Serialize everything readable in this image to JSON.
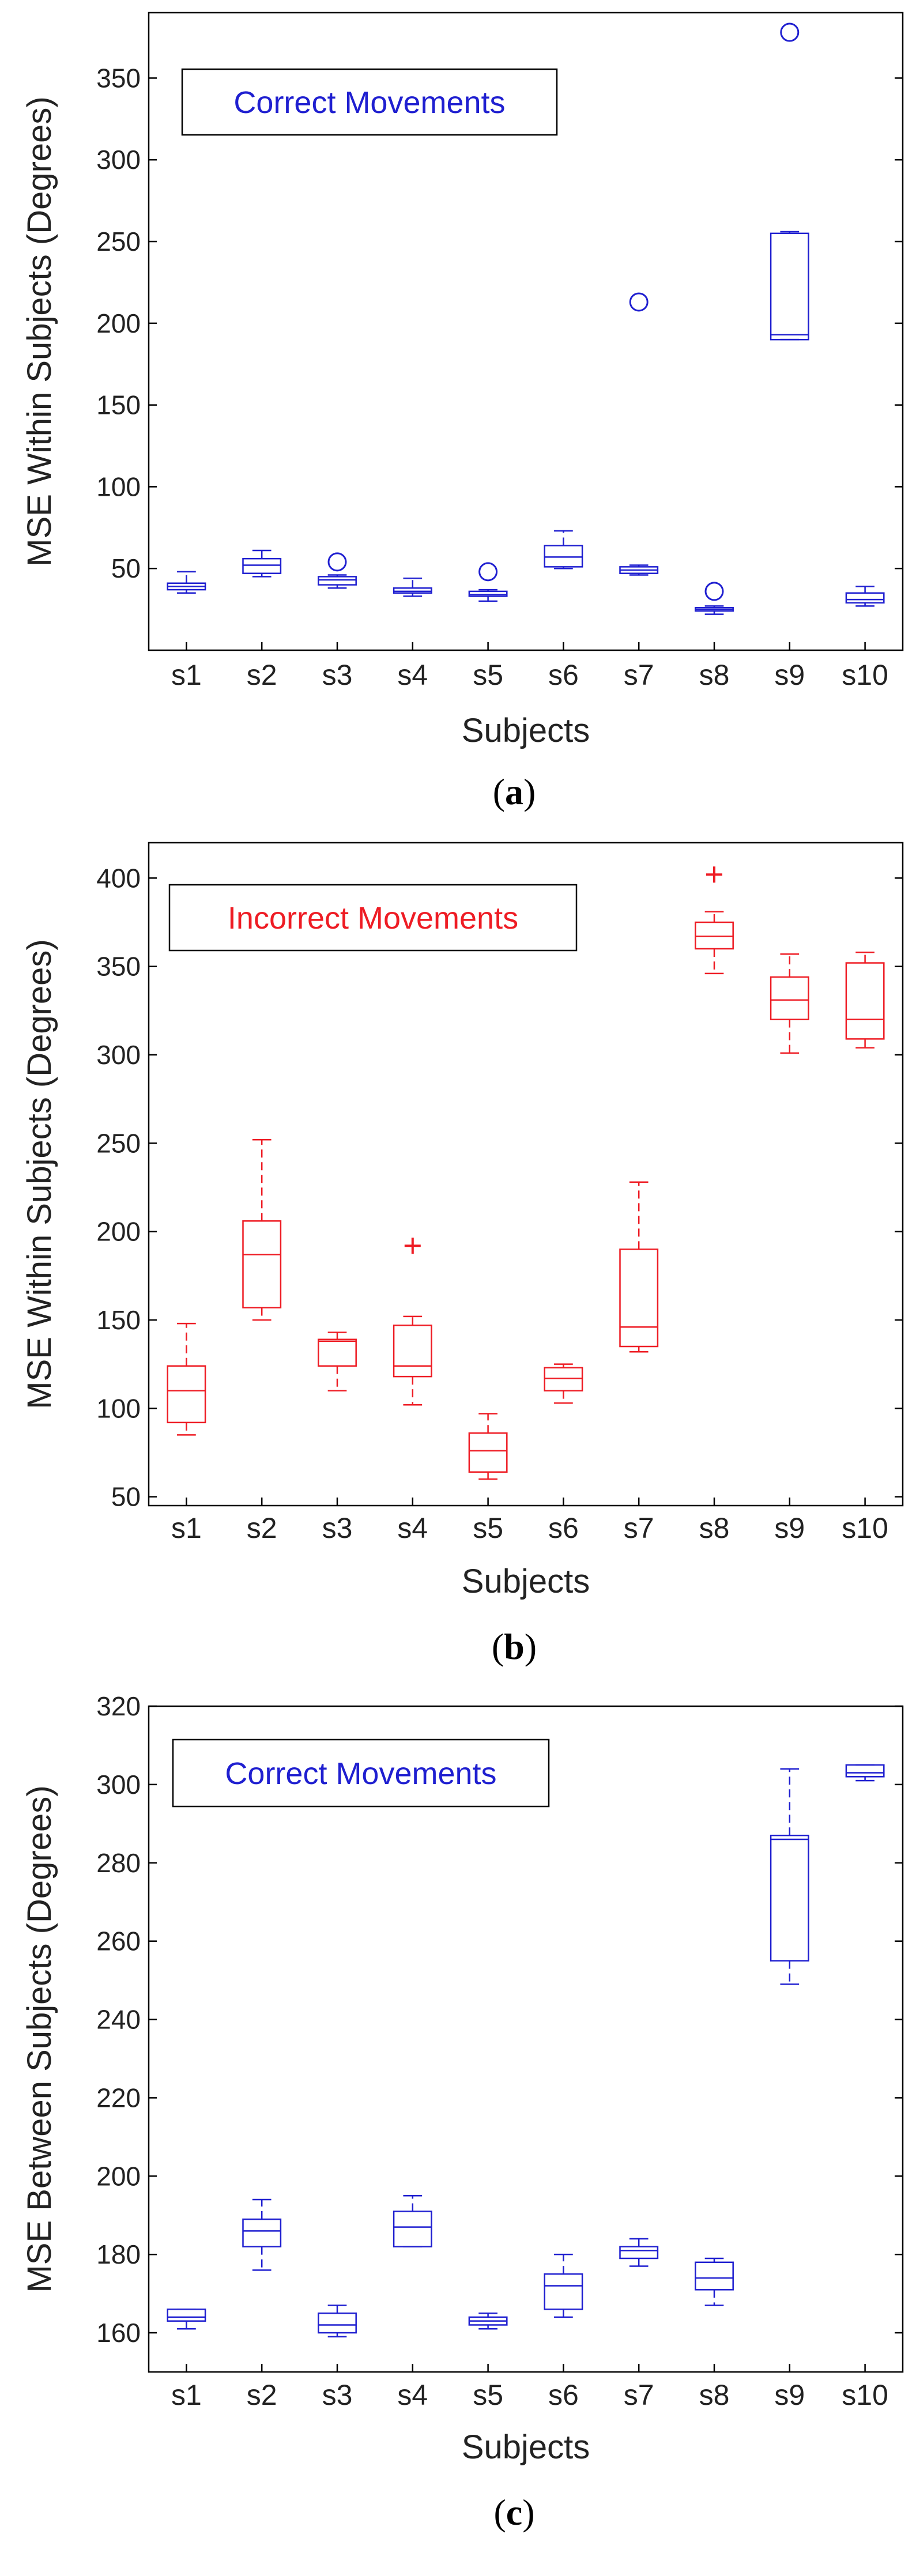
{
  "chart_data": [
    {
      "type": "boxplot",
      "panel_label": "a",
      "legend_text": "Correct Movements",
      "xlabel": "Subjects",
      "ylabel": "MSE Within Subjects (Degrees)",
      "ylim": [
        0,
        390
      ],
      "yticks": [
        50,
        100,
        150,
        200,
        250,
        300,
        350
      ],
      "color": "#1f1fd0",
      "outlier_marker": "circle",
      "categories": [
        "s1",
        "s2",
        "s3",
        "s4",
        "s5",
        "s6",
        "s7",
        "s8",
        "s9",
        "s10"
      ],
      "boxes": [
        {
          "min": 35,
          "q1": 37,
          "median": 39,
          "q3": 41,
          "max": 48,
          "outliers": []
        },
        {
          "min": 45,
          "q1": 47,
          "median": 52,
          "q3": 56,
          "max": 61,
          "outliers": []
        },
        {
          "min": 38,
          "q1": 40,
          "median": 43,
          "q3": 45,
          "max": 46,
          "outliers": [
            54
          ]
        },
        {
          "min": 33,
          "q1": 35,
          "median": 36,
          "q3": 38,
          "max": 44,
          "outliers": []
        },
        {
          "min": 30,
          "q1": 33,
          "median": 34,
          "q3": 36,
          "max": 37,
          "outliers": [
            48
          ]
        },
        {
          "min": 50,
          "q1": 51,
          "median": 57,
          "q3": 64,
          "max": 73,
          "outliers": []
        },
        {
          "min": 46,
          "q1": 47,
          "median": 49,
          "q3": 51,
          "max": 52,
          "outliers": [
            213
          ]
        },
        {
          "min": 22,
          "q1": 24,
          "median": 25,
          "q3": 26,
          "max": 27,
          "outliers": [
            36
          ]
        },
        {
          "min": 190,
          "q1": 190,
          "median": 193,
          "q3": 255,
          "max": 256,
          "outliers": [
            378
          ]
        },
        {
          "min": 27,
          "q1": 29,
          "median": 31,
          "q3": 35,
          "max": 39,
          "outliers": []
        }
      ]
    },
    {
      "type": "boxplot",
      "panel_label": "b",
      "legend_text": "Incorrect Movements",
      "xlabel": "Subjects",
      "ylabel": "MSE Within Subjects (Degrees)",
      "ylim": [
        45,
        420
      ],
      "yticks": [
        50,
        100,
        150,
        200,
        250,
        300,
        350,
        400
      ],
      "color": "#ee1c24",
      "outlier_marker": "plus",
      "categories": [
        "s1",
        "s2",
        "s3",
        "s4",
        "s5",
        "s6",
        "s7",
        "s8",
        "s9",
        "s10"
      ],
      "boxes": [
        {
          "min": 85,
          "q1": 92,
          "median": 110,
          "q3": 124,
          "max": 148,
          "outliers": []
        },
        {
          "min": 150,
          "q1": 157,
          "median": 187,
          "q3": 206,
          "max": 252,
          "outliers": []
        },
        {
          "min": 110,
          "q1": 124,
          "median": 138,
          "q3": 139,
          "max": 143,
          "outliers": []
        },
        {
          "min": 102,
          "q1": 118,
          "median": 124,
          "q3": 147,
          "max": 152,
          "outliers": [
            192
          ]
        },
        {
          "min": 60,
          "q1": 64,
          "median": 76,
          "q3": 86,
          "max": 97,
          "outliers": []
        },
        {
          "min": 103,
          "q1": 110,
          "median": 117,
          "q3": 123,
          "max": 125,
          "outliers": []
        },
        {
          "min": 132,
          "q1": 135,
          "median": 146,
          "q3": 190,
          "max": 228,
          "outliers": []
        },
        {
          "min": 346,
          "q1": 360,
          "median": 367,
          "q3": 375,
          "max": 381,
          "outliers": [
            402
          ]
        },
        {
          "min": 301,
          "q1": 320,
          "median": 331,
          "q3": 344,
          "max": 357,
          "outliers": []
        },
        {
          "min": 304,
          "q1": 309,
          "median": 320,
          "q3": 352,
          "max": 358,
          "outliers": []
        }
      ]
    },
    {
      "type": "boxplot",
      "panel_label": "c",
      "legend_text": "Correct Movements",
      "xlabel": "Subjects",
      "ylabel": "MSE Between Subjects (Degrees)",
      "ylim": [
        150,
        320
      ],
      "yticks": [
        160,
        180,
        200,
        220,
        240,
        260,
        280,
        300,
        320
      ],
      "color": "#1f1fd0",
      "outlier_marker": "none",
      "categories": [
        "s1",
        "s2",
        "s3",
        "s4",
        "s5",
        "s6",
        "s7",
        "s8",
        "s9",
        "s10"
      ],
      "boxes": [
        {
          "min": 161,
          "q1": 163,
          "median": 164,
          "q3": 166,
          "max": 166,
          "outliers": []
        },
        {
          "min": 176,
          "q1": 182,
          "median": 186,
          "q3": 189,
          "max": 194,
          "outliers": []
        },
        {
          "min": 159,
          "q1": 160,
          "median": 162,
          "q3": 165,
          "max": 167,
          "outliers": []
        },
        {
          "min": 182,
          "q1": 182,
          "median": 187,
          "q3": 191,
          "max": 195,
          "outliers": []
        },
        {
          "min": 161,
          "q1": 162,
          "median": 163,
          "q3": 164,
          "max": 165,
          "outliers": []
        },
        {
          "min": 164,
          "q1": 166,
          "median": 172,
          "q3": 175,
          "max": 180,
          "outliers": []
        },
        {
          "min": 177,
          "q1": 179,
          "median": 181,
          "q3": 182,
          "max": 184,
          "outliers": []
        },
        {
          "min": 167,
          "q1": 171,
          "median": 174,
          "q3": 178,
          "max": 179,
          "outliers": []
        },
        {
          "min": 249,
          "q1": 255,
          "median": 286,
          "q3": 287,
          "max": 304,
          "outliers": []
        },
        {
          "min": 301,
          "q1": 302,
          "median": 303,
          "q3": 305,
          "max": 305,
          "outliers": []
        }
      ]
    }
  ]
}
